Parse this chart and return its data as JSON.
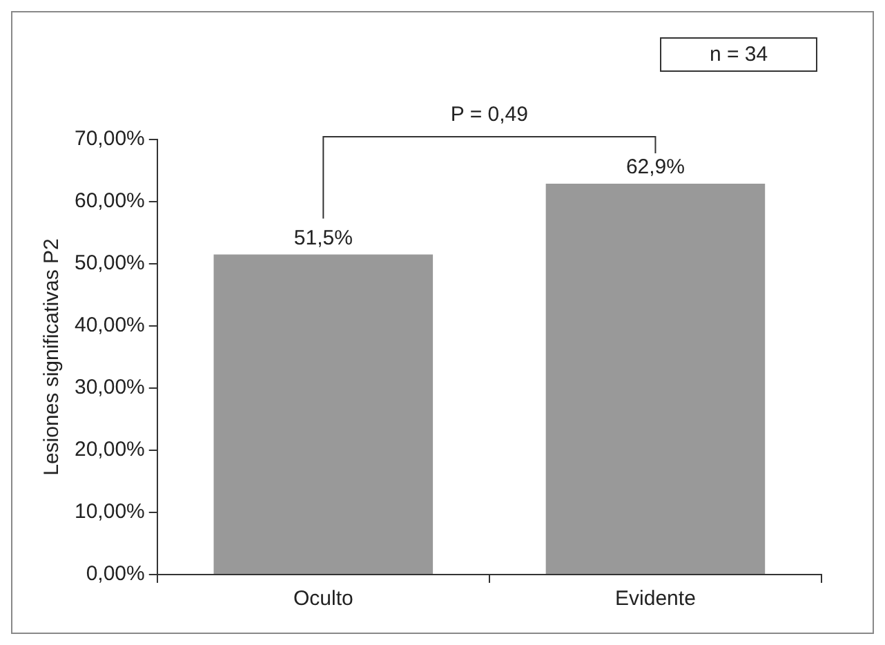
{
  "chart_data": {
    "type": "bar",
    "ylabel": "Lesiones significativas P2",
    "categories": [
      "Oculto",
      "Evidente"
    ],
    "values": [
      51.5,
      62.9
    ],
    "color": "#999999",
    "value_labels": [
      "51,5%",
      "62,9%"
    ],
    "ylim": [
      0,
      70
    ],
    "yticks": [
      {
        "value": 0,
        "label": "0,00%"
      },
      {
        "value": 10,
        "label": "10,00%"
      },
      {
        "value": 20,
        "label": "20,00%"
      },
      {
        "value": 30,
        "label": "30,00%"
      },
      {
        "value": 40,
        "label": "40,00%"
      },
      {
        "value": 50,
        "label": "50,00%"
      },
      {
        "value": 60,
        "label": "60,00%"
      },
      {
        "value": 70,
        "label": "70,00%"
      }
    ],
    "grid": false,
    "legend": false,
    "annotations": [
      "n = 34",
      "P = 0,49"
    ]
  }
}
